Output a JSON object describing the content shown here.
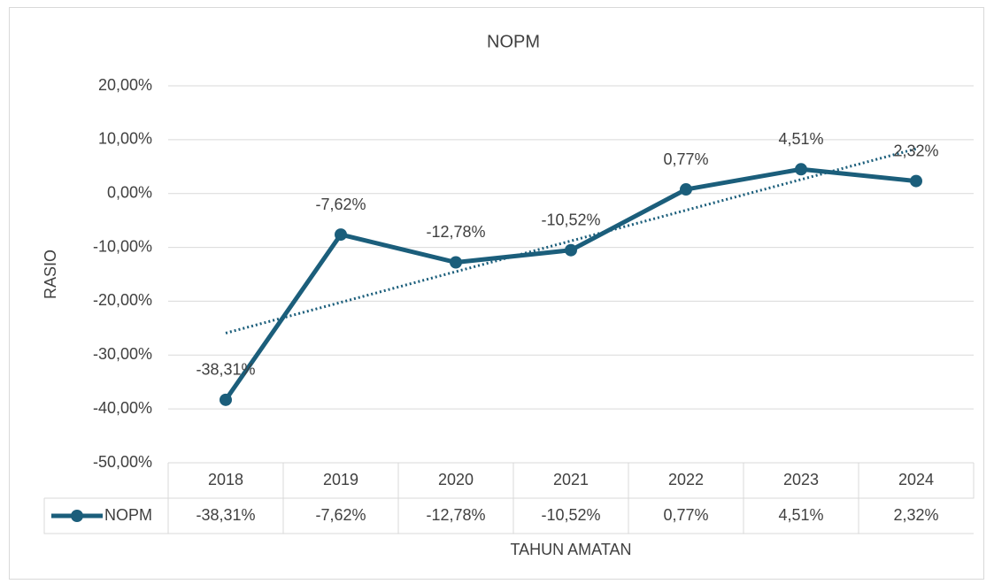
{
  "chart_data": {
    "type": "line",
    "title": "NOPM",
    "x_label": "TAHUN AMATAN",
    "y_label": "RASIO",
    "categories": [
      "2018",
      "2019",
      "2020",
      "2021",
      "2022",
      "2023",
      "2024"
    ],
    "series": [
      {
        "name": "NOPM",
        "color": "#1b5e7b",
        "values": [
          -38.31,
          -7.62,
          -12.78,
          -10.52,
          0.77,
          4.51,
          2.32
        ],
        "value_labels": [
          "-38,31%",
          "-7,62%",
          "-12,78%",
          "-10,52%",
          "0,77%",
          "4,51%",
          "2,32%"
        ]
      }
    ],
    "ylim": [
      -50,
      20
    ],
    "yticks": [
      {
        "value": -50,
        "label": "-50,00%"
      },
      {
        "value": -40,
        "label": "-40,00%"
      },
      {
        "value": -30,
        "label": "-30,00%"
      },
      {
        "value": -20,
        "label": "-20,00%"
      },
      {
        "value": -10,
        "label": "-10,00%"
      },
      {
        "value": 0,
        "label": "0,00%"
      },
      {
        "value": 10,
        "label": "10,00%"
      },
      {
        "value": 20,
        "label": "20,00%"
      }
    ],
    "grid": true,
    "trendline": "linear",
    "data_table": true
  }
}
